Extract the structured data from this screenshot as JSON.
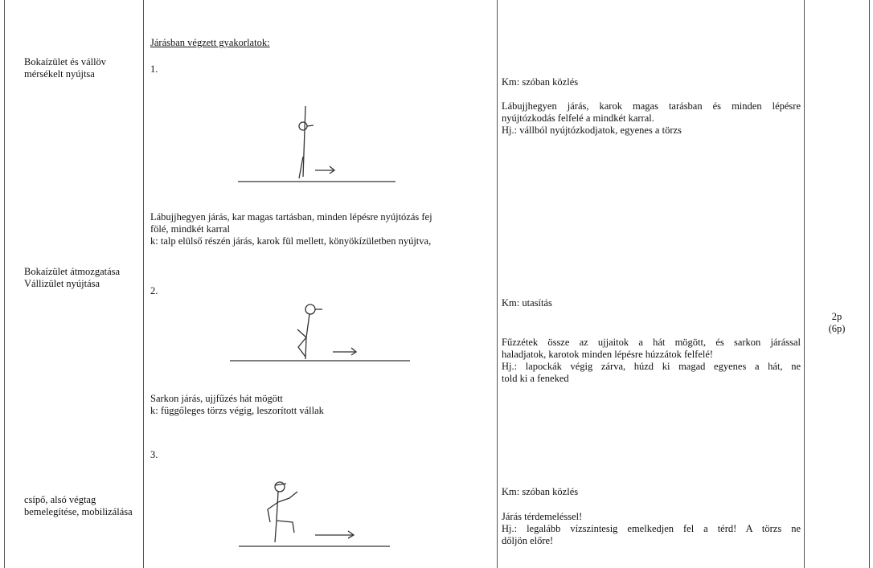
{
  "heading": "Járásban végzett gyakorlatok:",
  "rows": [
    {
      "goal": [
        "Bokaízület és vállöv",
        "mérsékelt nyújtsa"
      ],
      "number": "1.",
      "exercise": [
        " Lábujjhegyen járás, kar magas tartásban, minden lépésre nyújtózás fej",
        "fölé, mindkét karral",
        "k: talp elülső részén járás, karok fül mellett, könyökízületben nyújtva,"
      ],
      "method": "Km: szóban közlés",
      "description": [
        "Lábujjhegyen járás, karok magas tarásban és minden lépésre",
        "nyújtózkodás felfelé a mindkét karral.",
        "Hj.: vállból nyújtózkodjatok, egyenes a törzs"
      ]
    },
    {
      "goal": [
        "Bokaízület átmozgatása",
        "Vállizület nyújtása"
      ],
      "number": "2.",
      "exercise": [
        "Sarkon járás, ujjfűzés hát mögött",
        "k: függőleges törzs végig, leszorított vállak"
      ],
      "method": "Km: utasítás",
      "description": [
        "Fűzzétek össze az ujjaitok a hát mögött, és sarkon járással",
        "haladjatok, karotok minden lépésre húzzátok felfelé!",
        "Hj.: lapockák végig zárva, húzd ki magad egyenes a hát, ne",
        "told ki a feneked"
      ]
    },
    {
      "goal": [
        "csípő, alsó végtag",
        "bemelegítése, mobilizálása"
      ],
      "number": "3.",
      "exercise": [],
      "method": "Km: szóban közlés",
      "description": [
        "Járás térdemeléssel!",
        "Hj.: legalább vízszintesig emelkedjen fel a térd! A törzs ne",
        "dőljön előre!"
      ]
    }
  ],
  "time": [
    "2p",
    "(6p)"
  ]
}
